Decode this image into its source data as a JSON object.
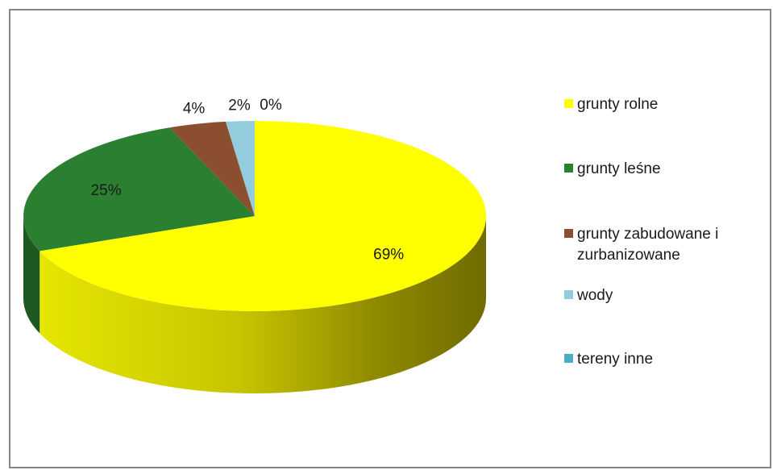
{
  "chart_data": {
    "type": "pie",
    "categories": [
      "grunty rolne",
      "grunty leśne",
      "grunty zabudowane i zurbanizowane",
      "wody",
      "tereny inne"
    ],
    "values": [
      69,
      25,
      4,
      2,
      0
    ],
    "labels": [
      "69%",
      "25%",
      "4%",
      "2%",
      "0%"
    ],
    "colors": [
      "#ffff00",
      "#2a8030",
      "#8b4e2e",
      "#93cddd",
      "#4bacc6"
    ],
    "legend_position": "right",
    "style": "3d"
  }
}
